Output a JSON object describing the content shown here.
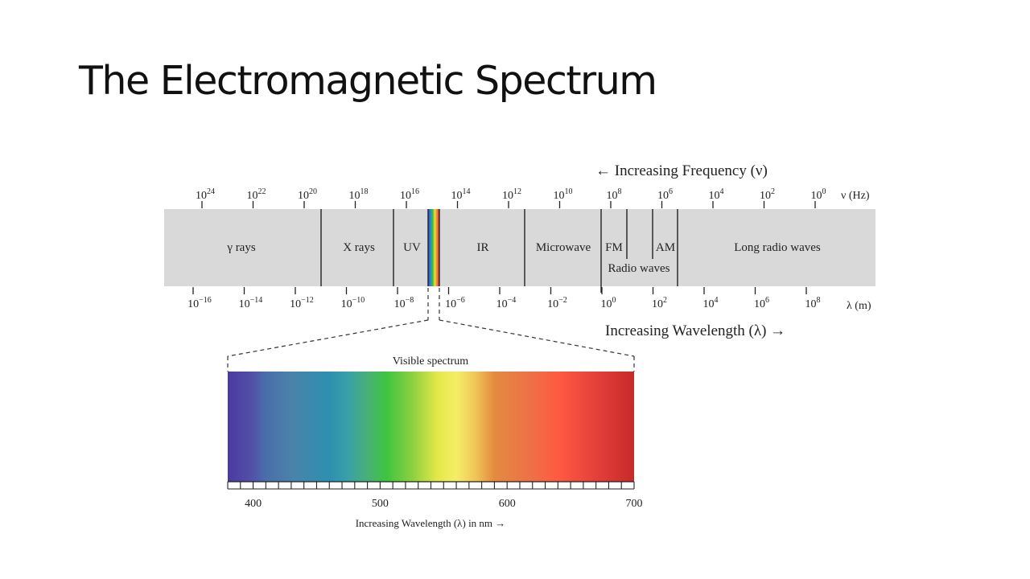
{
  "slide": {
    "title": "The Electromagnetic Spectrum"
  },
  "frequency": {
    "header": "← Increasing Frequency (ν)",
    "unit": "ν (Hz)",
    "exponents": [
      "24",
      "22",
      "20",
      "18",
      "16",
      "14",
      "12",
      "10",
      "8",
      "6",
      "4",
      "2",
      "0"
    ]
  },
  "wavelength": {
    "header": "Increasing Wavelength (λ) →",
    "unit": "λ (m)",
    "exponents": [
      "−16",
      "−14",
      "−12",
      "−10",
      "−8",
      "−6",
      "−4",
      "−2",
      "0",
      "2",
      "4",
      "6",
      "8"
    ]
  },
  "bands": {
    "gamma": "γ rays",
    "xray": "X rays",
    "uv": "UV",
    "ir": "IR",
    "microwave": "Microwave",
    "fm": "FM",
    "am": "AM",
    "radio": "Radio waves",
    "long_radio": "Long radio waves"
  },
  "visible": {
    "title": "Visible spectrum",
    "axis_label": "Increasing Wavelength (λ) in nm →",
    "ticks": [
      "400",
      "500",
      "600",
      "700"
    ],
    "range_nm": [
      380,
      700
    ],
    "color_stops": [
      {
        "nm": 380,
        "color": "#4a3aa0"
      },
      {
        "nm": 400,
        "color": "#5252a8"
      },
      {
        "nm": 410,
        "color": "#4a6eaa"
      },
      {
        "nm": 430,
        "color": "#4a82aa"
      },
      {
        "nm": 460,
        "color": "#2d90b0"
      },
      {
        "nm": 475,
        "color": "#3aa0a8"
      },
      {
        "nm": 490,
        "color": "#48b078"
      },
      {
        "nm": 505,
        "color": "#3fc440"
      },
      {
        "nm": 525,
        "color": "#8ad040"
      },
      {
        "nm": 545,
        "color": "#e4e848"
      },
      {
        "nm": 560,
        "color": "#f4ee66"
      },
      {
        "nm": 575,
        "color": "#f0c658"
      },
      {
        "nm": 590,
        "color": "#e48a40"
      },
      {
        "nm": 615,
        "color": "#ec7446"
      },
      {
        "nm": 640,
        "color": "#ff5a42"
      },
      {
        "nm": 670,
        "color": "#e5403a"
      },
      {
        "nm": 700,
        "color": "#c62a2a"
      }
    ]
  },
  "colors": {
    "band_fill": "#d9d9d9",
    "line": "#222222"
  }
}
